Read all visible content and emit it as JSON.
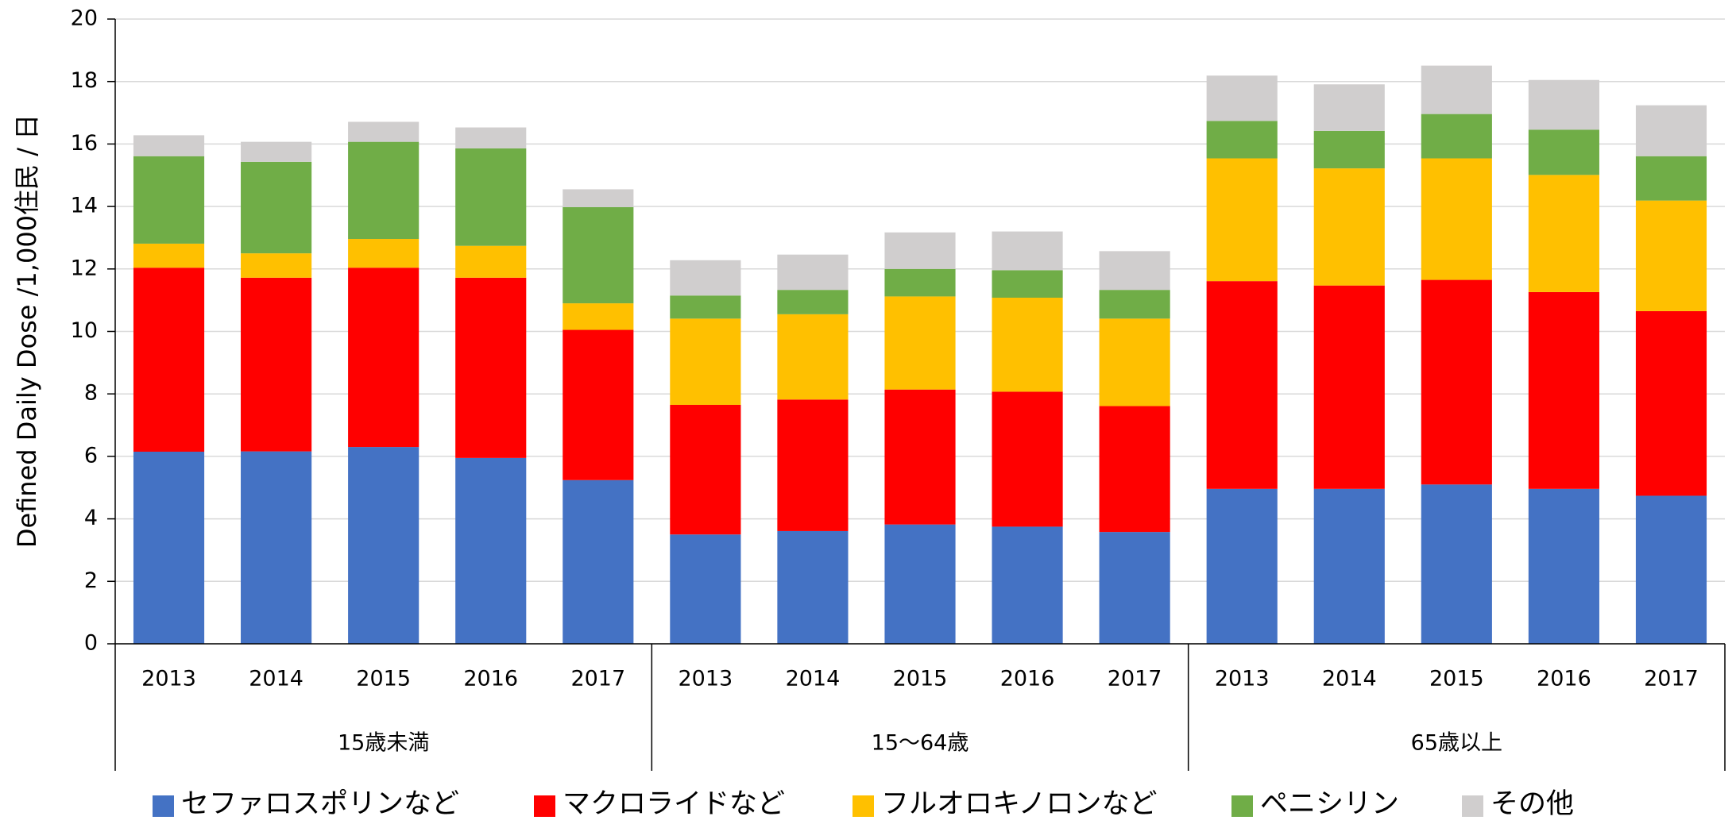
{
  "chart_data": {
    "type": "stacked_bar",
    "y_label": "Defined Daily Dose /1,000住民 / 日",
    "categories": [
      "2013",
      "2014",
      "2015",
      "2016",
      "2017",
      "2013",
      "2014",
      "2015",
      "2016",
      "2017",
      "2013",
      "2014",
      "2015",
      "2016",
      "2017"
    ],
    "groups": [
      "15歳未満",
      "15～64歳",
      "65歳以上"
    ],
    "series": [
      {
        "name": "セファロスポリンなど",
        "color": "#4472c4",
        "values": [
          6.15,
          6.16,
          6.3,
          5.95,
          5.24,
          3.5,
          3.61,
          3.82,
          3.75,
          3.58,
          4.96,
          4.96,
          5.1,
          4.96,
          4.74
        ]
      },
      {
        "name": "マクロライドなど",
        "color": "#ff0000",
        "values": [
          5.89,
          5.56,
          5.74,
          5.77,
          4.81,
          4.15,
          4.21,
          4.32,
          4.32,
          4.03,
          6.65,
          6.51,
          6.55,
          6.3,
          5.91
        ]
      },
      {
        "name": "フルオロキノロンなど",
        "color": "#ffc000",
        "values": [
          0.77,
          0.78,
          0.92,
          1.02,
          0.85,
          2.76,
          2.73,
          2.98,
          3.01,
          2.8,
          3.93,
          3.75,
          3.89,
          3.75,
          3.54
        ]
      },
      {
        "name": "ペニシリン",
        "color": "#70ad47",
        "values": [
          2.8,
          2.93,
          3.11,
          3.12,
          3.08,
          0.74,
          0.78,
          0.88,
          0.88,
          0.92,
          1.2,
          1.2,
          1.42,
          1.45,
          1.42
        ]
      },
      {
        "name": "その他",
        "color": "#d0cece",
        "values": [
          0.67,
          0.64,
          0.64,
          0.67,
          0.57,
          1.13,
          1.13,
          1.17,
          1.24,
          1.24,
          1.45,
          1.49,
          1.55,
          1.59,
          1.63
        ]
      }
    ],
    "ylim": [
      0,
      20
    ],
    "yticks": [
      0,
      2,
      4,
      6,
      8,
      10,
      12,
      14,
      16,
      18,
      20
    ],
    "grid": true,
    "legend": "bottom"
  }
}
